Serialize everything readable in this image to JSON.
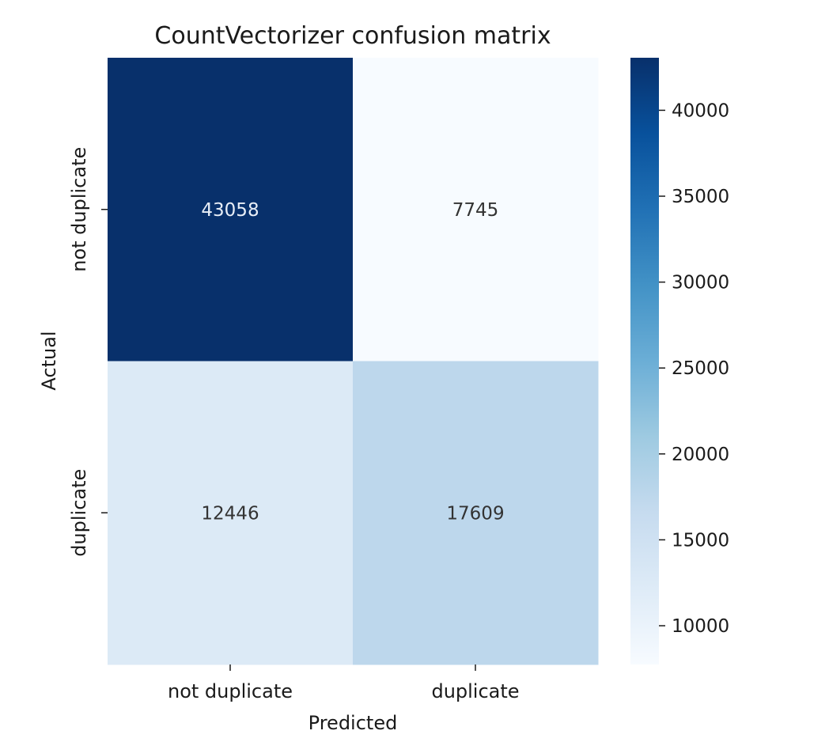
{
  "chart_data": {
    "type": "heatmap",
    "title": "CountVectorizer confusion matrix",
    "xlabel": "Predicted",
    "ylabel": "Actual",
    "x_categories": [
      "not duplicate",
      "duplicate"
    ],
    "y_categories": [
      "not duplicate",
      "duplicate"
    ],
    "values": [
      [
        43058,
        7745
      ],
      [
        12446,
        17609
      ]
    ],
    "colormap": "Blues",
    "colorbar": {
      "ticks": [
        10000,
        15000,
        20000,
        25000,
        30000,
        35000,
        40000
      ],
      "range": [
        7745,
        43058
      ]
    }
  }
}
